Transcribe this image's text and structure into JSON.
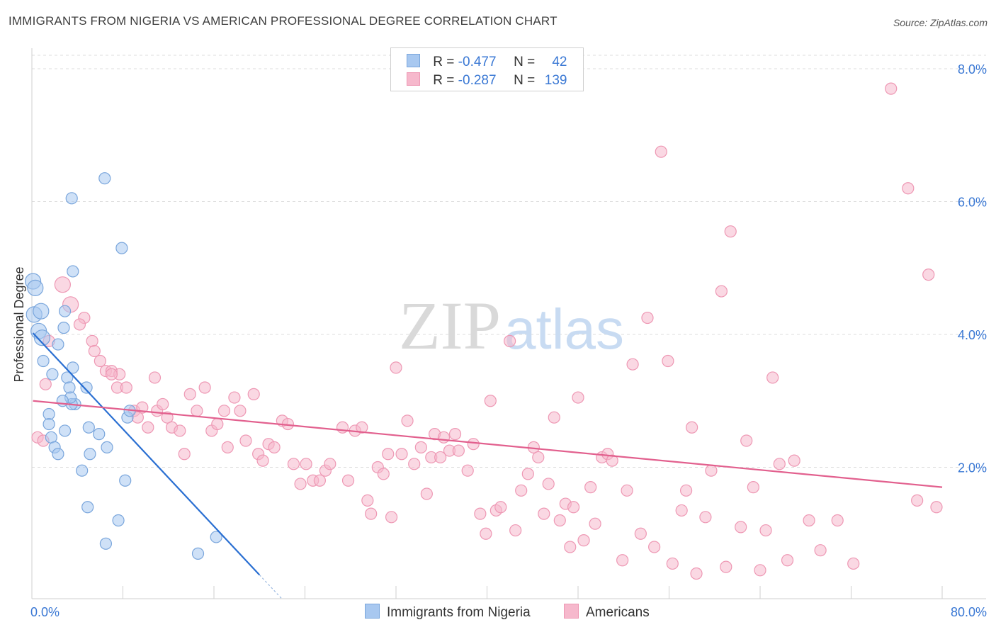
{
  "header": {
    "title": "IMMIGRANTS FROM NIGERIA VS AMERICAN PROFESSIONAL DEGREE CORRELATION CHART",
    "source": "Source: ZipAtlas.com"
  },
  "watermark": {
    "zip": "ZIP",
    "atlas": "atlas"
  },
  "legend": {
    "series1": {
      "r_label": "R =",
      "r_value": "-0.477",
      "n_label": "N =",
      "n_value": "42",
      "color": "#a8c8f0"
    },
    "series2": {
      "r_label": "R =",
      "r_value": "-0.287",
      "n_label": "N =",
      "n_value": "139",
      "color": "#f6b8cc"
    }
  },
  "bottom_legend": {
    "item1": "Immigrants from Nigeria",
    "item2": "Americans"
  },
  "chart_data": {
    "type": "scatter",
    "title": "IMMIGRANTS FROM NIGERIA VS AMERICAN PROFESSIONAL DEGREE CORRELATION CHART",
    "xlabel": "",
    "ylabel": "Professional Degree",
    "xlim": [
      0,
      80
    ],
    "ylim": [
      0,
      8.0
    ],
    "x_tick_labels": [
      "0.0%",
      "80.0%"
    ],
    "y_ticks": [
      2.0,
      4.0,
      6.0,
      8.0
    ],
    "y_tick_labels": [
      "2.0%",
      "4.0%",
      "6.0%",
      "8.0%"
    ],
    "grid": true,
    "series": [
      {
        "name": "Immigrants from Nigeria",
        "color": "#a8c8f0",
        "stroke": "#7aa6dc",
        "line_color": "#2a6fd2",
        "trend": {
          "x0": 0.1,
          "y0": 4.02,
          "x1": 20.0,
          "y1": 0.38,
          "dashed_to_x": 22.0
        },
        "points": [
          [
            0.1,
            4.8
          ],
          [
            0.3,
            4.7
          ],
          [
            0.2,
            4.3
          ],
          [
            0.8,
            4.35
          ],
          [
            0.6,
            4.05
          ],
          [
            0.9,
            3.95
          ],
          [
            1.0,
            3.6
          ],
          [
            1.8,
            3.4
          ],
          [
            2.3,
            3.85
          ],
          [
            2.8,
            4.1
          ],
          [
            2.9,
            4.35
          ],
          [
            3.1,
            3.35
          ],
          [
            3.3,
            3.2
          ],
          [
            3.8,
            2.95
          ],
          [
            3.5,
            2.95
          ],
          [
            4.8,
            3.2
          ],
          [
            5.0,
            2.6
          ],
          [
            5.1,
            2.2
          ],
          [
            1.5,
            2.8
          ],
          [
            1.5,
            2.65
          ],
          [
            1.7,
            2.45
          ],
          [
            2.0,
            2.3
          ],
          [
            2.3,
            2.2
          ],
          [
            2.9,
            2.55
          ],
          [
            4.4,
            1.95
          ],
          [
            3.6,
            3.5
          ],
          [
            3.4,
            3.05
          ],
          [
            5.9,
            2.5
          ],
          [
            6.6,
            2.3
          ],
          [
            8.4,
            2.75
          ],
          [
            8.6,
            2.85
          ],
          [
            8.2,
            1.8
          ],
          [
            7.6,
            1.2
          ],
          [
            4.9,
            1.4
          ],
          [
            6.5,
            0.85
          ],
          [
            7.9,
            5.3
          ],
          [
            3.6,
            4.95
          ],
          [
            6.4,
            6.35
          ],
          [
            3.5,
            6.05
          ],
          [
            16.2,
            0.95
          ],
          [
            14.6,
            0.7
          ],
          [
            2.7,
            3.0
          ]
        ]
      },
      {
        "name": "Americans",
        "color": "#f6b8cc",
        "stroke": "#ee98b4",
        "line_color": "#e2608e",
        "trend": {
          "x0": 0.1,
          "y0": 3.0,
          "x1": 80.0,
          "y1": 1.7
        },
        "points": [
          [
            0.5,
            2.45
          ],
          [
            1.2,
            3.25
          ],
          [
            1.5,
            3.9
          ],
          [
            2.7,
            4.75
          ],
          [
            3.4,
            4.45
          ],
          [
            4.6,
            4.25
          ],
          [
            4.2,
            4.15
          ],
          [
            5.3,
            3.9
          ],
          [
            5.5,
            3.75
          ],
          [
            6.0,
            3.6
          ],
          [
            6.5,
            3.45
          ],
          [
            7.0,
            3.45
          ],
          [
            7.5,
            3.2
          ],
          [
            7.7,
            3.4
          ],
          [
            8.3,
            3.2
          ],
          [
            9.0,
            2.85
          ],
          [
            9.3,
            2.75
          ],
          [
            9.7,
            2.9
          ],
          [
            10.2,
            2.6
          ],
          [
            10.8,
            3.35
          ],
          [
            11.0,
            2.85
          ],
          [
            11.5,
            2.95
          ],
          [
            11.9,
            2.75
          ],
          [
            12.3,
            2.6
          ],
          [
            13.0,
            2.55
          ],
          [
            13.4,
            2.2
          ],
          [
            13.9,
            3.1
          ],
          [
            14.5,
            2.85
          ],
          [
            15.2,
            3.2
          ],
          [
            15.8,
            2.55
          ],
          [
            16.3,
            2.65
          ],
          [
            16.9,
            2.85
          ],
          [
            17.2,
            2.3
          ],
          [
            17.8,
            3.05
          ],
          [
            18.3,
            2.85
          ],
          [
            18.8,
            2.4
          ],
          [
            19.5,
            3.1
          ],
          [
            19.9,
            2.2
          ],
          [
            20.3,
            2.1
          ],
          [
            20.8,
            2.35
          ],
          [
            21.3,
            2.3
          ],
          [
            22.0,
            2.7
          ],
          [
            22.5,
            2.65
          ],
          [
            23.0,
            2.05
          ],
          [
            23.6,
            1.75
          ],
          [
            24.1,
            2.05
          ],
          [
            24.7,
            1.8
          ],
          [
            25.3,
            1.8
          ],
          [
            25.8,
            1.95
          ],
          [
            26.2,
            2.05
          ],
          [
            27.3,
            2.6
          ],
          [
            27.8,
            1.8
          ],
          [
            28.4,
            2.55
          ],
          [
            29.0,
            2.6
          ],
          [
            29.5,
            1.5
          ],
          [
            29.8,
            1.3
          ],
          [
            30.4,
            2.0
          ],
          [
            30.9,
            1.9
          ],
          [
            31.3,
            2.2
          ],
          [
            31.6,
            1.25
          ],
          [
            32.0,
            3.5
          ],
          [
            32.5,
            2.2
          ],
          [
            33.0,
            2.7
          ],
          [
            33.6,
            2.05
          ],
          [
            34.2,
            2.3
          ],
          [
            34.7,
            1.6
          ],
          [
            35.1,
            2.15
          ],
          [
            35.4,
            2.5
          ],
          [
            35.9,
            2.15
          ],
          [
            36.2,
            2.45
          ],
          [
            36.7,
            2.25
          ],
          [
            37.2,
            2.5
          ],
          [
            37.5,
            2.25
          ],
          [
            38.3,
            1.95
          ],
          [
            38.8,
            2.35
          ],
          [
            39.4,
            1.3
          ],
          [
            39.9,
            1.0
          ],
          [
            40.3,
            3.0
          ],
          [
            40.8,
            1.35
          ],
          [
            41.2,
            1.4
          ],
          [
            42.0,
            3.9
          ],
          [
            42.5,
            1.05
          ],
          [
            43.0,
            1.65
          ],
          [
            43.6,
            1.9
          ],
          [
            44.1,
            2.3
          ],
          [
            44.5,
            2.15
          ],
          [
            45.0,
            1.3
          ],
          [
            45.4,
            1.75
          ],
          [
            45.9,
            2.75
          ],
          [
            46.4,
            1.2
          ],
          [
            46.9,
            1.45
          ],
          [
            47.3,
            0.8
          ],
          [
            47.6,
            1.4
          ],
          [
            48.0,
            3.05
          ],
          [
            48.5,
            0.9
          ],
          [
            49.1,
            1.7
          ],
          [
            49.5,
            1.15
          ],
          [
            50.1,
            2.15
          ],
          [
            50.6,
            2.2
          ],
          [
            51.0,
            2.1
          ],
          [
            51.9,
            0.6
          ],
          [
            52.3,
            1.65
          ],
          [
            52.8,
            3.55
          ],
          [
            53.5,
            1.0
          ],
          [
            54.1,
            4.25
          ],
          [
            54.7,
            0.8
          ],
          [
            55.3,
            6.75
          ],
          [
            55.9,
            3.6
          ],
          [
            56.3,
            0.55
          ],
          [
            57.1,
            1.35
          ],
          [
            57.5,
            1.65
          ],
          [
            58.0,
            2.6
          ],
          [
            58.4,
            0.4
          ],
          [
            59.2,
            1.25
          ],
          [
            59.7,
            1.95
          ],
          [
            60.6,
            4.65
          ],
          [
            61.0,
            0.5
          ],
          [
            61.4,
            5.55
          ],
          [
            62.3,
            1.1
          ],
          [
            62.8,
            2.4
          ],
          [
            63.4,
            1.7
          ],
          [
            64.0,
            0.45
          ],
          [
            64.5,
            1.05
          ],
          [
            65.1,
            3.35
          ],
          [
            65.7,
            2.05
          ],
          [
            66.4,
            0.6
          ],
          [
            67.0,
            2.1
          ],
          [
            68.3,
            1.2
          ],
          [
            69.3,
            0.75
          ],
          [
            70.8,
            1.2
          ],
          [
            72.2,
            0.55
          ],
          [
            75.5,
            7.7
          ],
          [
            77.0,
            6.2
          ],
          [
            77.8,
            1.5
          ],
          [
            78.8,
            4.9
          ],
          [
            79.5,
            1.4
          ],
          [
            1.0,
            2.4
          ],
          [
            7.0,
            3.4
          ]
        ]
      }
    ]
  }
}
